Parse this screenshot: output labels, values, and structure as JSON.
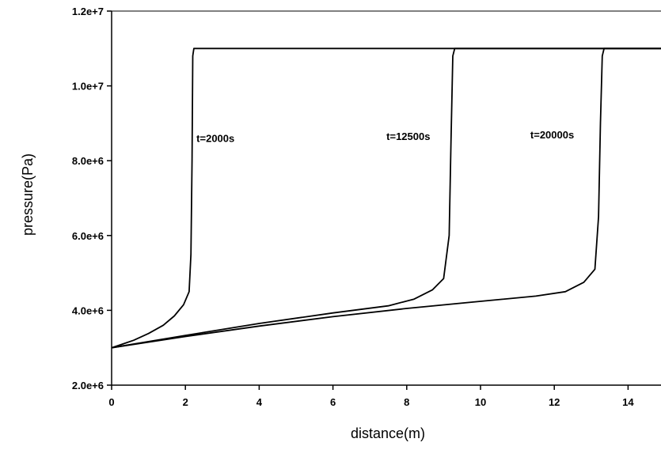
{
  "chart_data": {
    "type": "line",
    "title": "",
    "xlabel": "distance(m)",
    "ylabel": "pressure(Pa)",
    "xlim": [
      0,
      15
    ],
    "ylim": [
      2000000,
      12000000
    ],
    "xticks": [
      0,
      2,
      4,
      6,
      8,
      10,
      12,
      14
    ],
    "xtick_labels": [
      "0",
      "2",
      "4",
      "6",
      "8",
      "10",
      "12",
      "14"
    ],
    "yticks": [
      2000000,
      4000000,
      6000000,
      8000000,
      10000000,
      12000000
    ],
    "ytick_labels": [
      "2.0e+6",
      "4.0e+6",
      "6.0e+6",
      "8.0e+6",
      "1.0e+7",
      "1.2e+7"
    ],
    "grid": false,
    "legend": "none",
    "series": [
      {
        "x": [
          0,
          0.3,
          0.6,
          1.0,
          1.4,
          1.7,
          1.95,
          2.1,
          2.15,
          2.18,
          2.2,
          2.23,
          15
        ],
        "y": [
          3000000,
          3100000,
          3200000,
          3380000,
          3600000,
          3850000,
          4150000,
          4500000,
          5500000,
          8000000,
          10800000,
          11000000,
          11000000
        ]
      },
      {
        "x": [
          0,
          2,
          4,
          6,
          7.5,
          8.2,
          8.7,
          9.0,
          9.15,
          9.2,
          9.25,
          9.3,
          15
        ],
        "y": [
          3000000,
          3330000,
          3650000,
          3930000,
          4120000,
          4300000,
          4550000,
          4850000,
          6000000,
          8500000,
          10800000,
          11000000,
          11000000
        ]
      },
      {
        "x": [
          0,
          2,
          4,
          6,
          8,
          10,
          11.5,
          12.3,
          12.8,
          13.1,
          13.2,
          13.25,
          13.3,
          13.35,
          15
        ],
        "y": [
          3000000,
          3300000,
          3580000,
          3830000,
          4050000,
          4240000,
          4380000,
          4500000,
          4750000,
          5100000,
          6500000,
          9000000,
          10800000,
          11000000,
          11000000
        ]
      }
    ],
    "annotations": [
      {
        "text": "t=2000s",
        "x": 2.3,
        "y": 8500000
      },
      {
        "text": "t=12500s",
        "x": 7.45,
        "y": 8550000
      },
      {
        "text": "t=20000s",
        "x": 11.35,
        "y": 8600000
      }
    ]
  }
}
